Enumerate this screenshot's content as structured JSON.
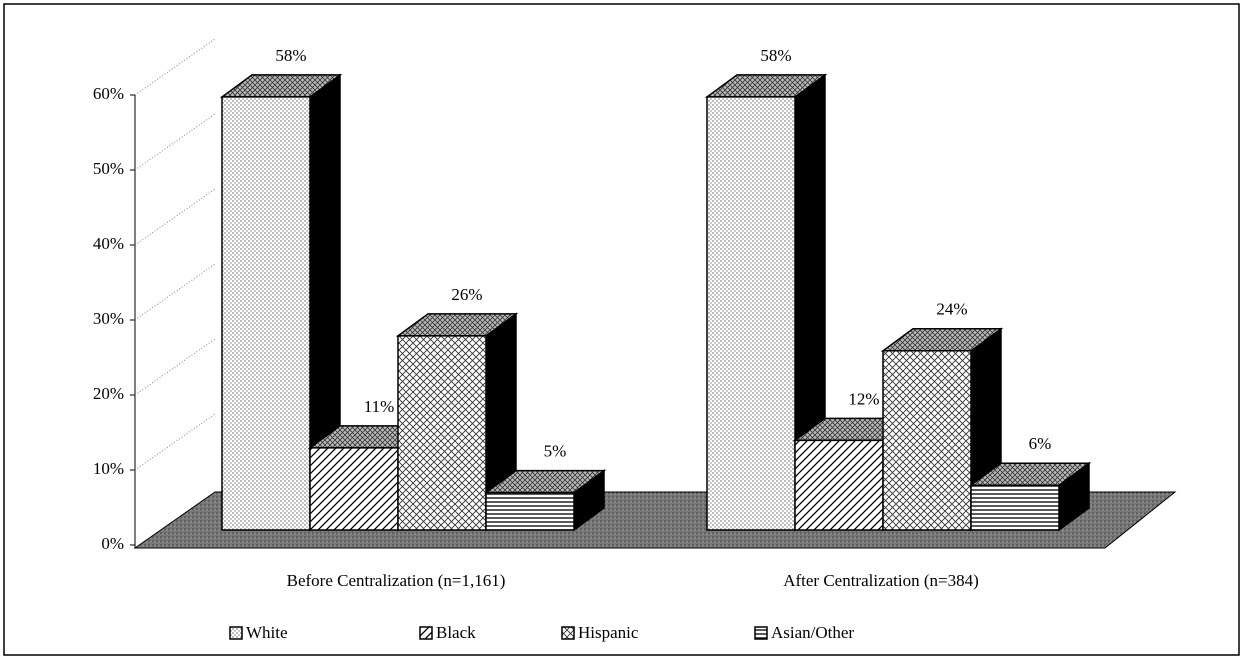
{
  "chart_data": {
    "type": "bar3d",
    "categories": [
      "Before Centralization (n=1,161)",
      "After Centralization (n=384)"
    ],
    "series": [
      {
        "name": "White",
        "values": [
          58,
          58
        ],
        "value_labels": [
          "58%",
          "58%"
        ]
      },
      {
        "name": "Black",
        "values": [
          11,
          12
        ],
        "value_labels": [
          "11%",
          "12%"
        ]
      },
      {
        "name": "Hispanic",
        "values": [
          26,
          24
        ],
        "value_labels": [
          "26%",
          "24%"
        ]
      },
      {
        "name": "Asian/Other",
        "values": [
          5,
          6
        ],
        "value_labels": [
          "5%",
          "6%"
        ]
      }
    ],
    "ylim": [
      0,
      60
    ],
    "yticks": [
      {
        "value": 0,
        "label": "0%"
      },
      {
        "value": 10,
        "label": "10%"
      },
      {
        "value": 20,
        "label": "20%"
      },
      {
        "value": 30,
        "label": "30%"
      },
      {
        "value": 40,
        "label": "40%"
      },
      {
        "value": 50,
        "label": "50%"
      },
      {
        "value": 60,
        "label": "60%"
      }
    ],
    "grid": true,
    "legend": "bottom"
  }
}
